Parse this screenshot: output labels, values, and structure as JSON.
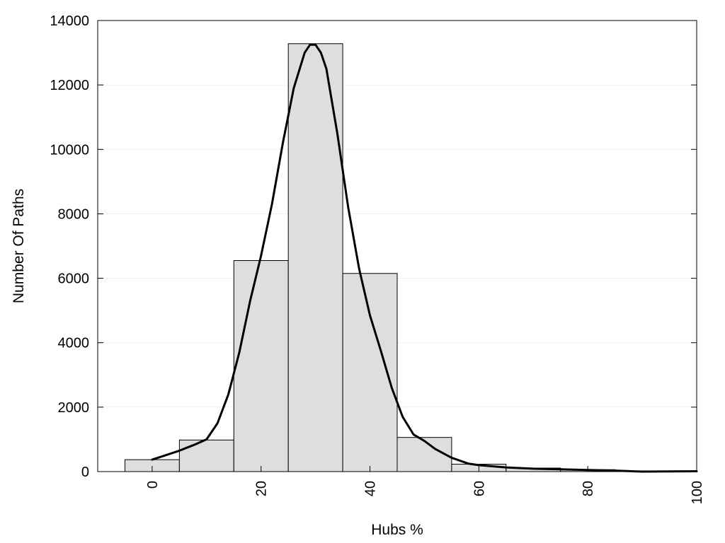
{
  "chart_data": {
    "type": "bar",
    "title": "",
    "xlabel": "Hubs %",
    "ylabel": "Number Of Paths",
    "xlim": [
      -10,
      100
    ],
    "ylim": [
      0,
      14000
    ],
    "x_ticks": [
      "0",
      "20",
      "40",
      "60",
      "80",
      "100"
    ],
    "x_tick_values": [
      0,
      20,
      40,
      60,
      80,
      100
    ],
    "y_ticks": [
      "0",
      "2000",
      "4000",
      "6000",
      "8000",
      "10000",
      "12000",
      "14000"
    ],
    "y_tick_values": [
      0,
      2000,
      4000,
      6000,
      8000,
      10000,
      12000,
      14000
    ],
    "grid": "horizontal-dotted",
    "bin_width": 10,
    "bars": {
      "x": [
        0,
        10,
        20,
        30,
        40,
        50,
        60,
        70,
        80,
        90,
        100
      ],
      "values": [
        370,
        980,
        6550,
        13280,
        6150,
        1060,
        230,
        110,
        60,
        20,
        10
      ]
    },
    "curve": {
      "x": [
        0,
        2,
        5,
        8,
        10,
        12,
        14,
        16,
        18,
        20,
        22,
        24,
        26,
        28,
        29,
        30,
        31,
        32,
        34,
        36,
        38,
        40,
        42,
        44,
        46,
        48,
        50,
        52,
        55,
        58,
        60,
        65,
        70,
        75,
        80,
        85,
        90,
        95,
        100
      ],
      "y": [
        370,
        480,
        650,
        850,
        1000,
        1500,
        2400,
        3700,
        5300,
        6700,
        8300,
        10200,
        11900,
        13000,
        13250,
        13250,
        13000,
        12500,
        10500,
        8200,
        6300,
        4850,
        3750,
        2600,
        1700,
        1150,
        950,
        700,
        430,
        250,
        200,
        130,
        90,
        70,
        50,
        30,
        0,
        5,
        10
      ]
    },
    "colors": {
      "bar_fill": "#dedede",
      "line": "#000000"
    }
  }
}
